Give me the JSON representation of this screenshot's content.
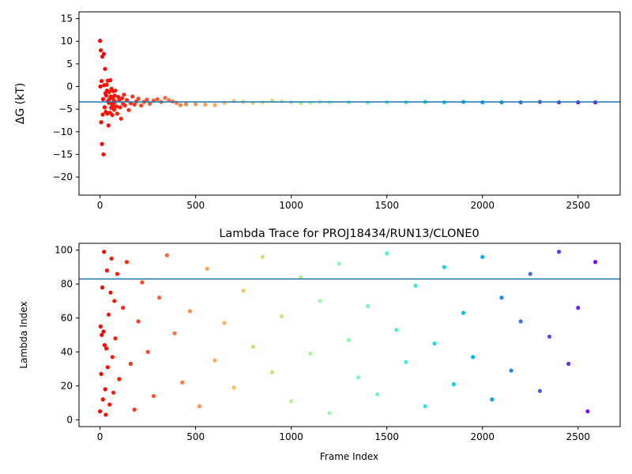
{
  "chart_data": [
    {
      "type": "scatter",
      "title": "",
      "xlabel": "",
      "ylabel": "ΔG (kT)",
      "xlim": [
        -110,
        2720
      ],
      "ylim": [
        -24,
        16.5
      ],
      "x_ticks": [
        0,
        500,
        1000,
        1500,
        2000,
        2500
      ],
      "y_ticks": [
        15,
        10,
        5,
        0,
        -5,
        -10,
        -15,
        -20
      ],
      "colormap": "rainbow (red → violet along frame index)",
      "reference_line": {
        "y": -3.4,
        "color": "#1f77b4"
      },
      "series": [
        {
          "description": "running ΔG estimate per frame",
          "points": [
            [
              0,
              10.1
            ],
            [
              2,
              0.0
            ],
            [
              4,
              8.0
            ],
            [
              6,
              -7.9
            ],
            [
              8,
              1.2
            ],
            [
              10,
              -12.7
            ],
            [
              12,
              6.6
            ],
            [
              14,
              -6.2
            ],
            [
              16,
              -2.8
            ],
            [
              18,
              -15.0
            ],
            [
              20,
              7.2
            ],
            [
              22,
              0.3
            ],
            [
              24,
              -4.6
            ],
            [
              26,
              3.9
            ],
            [
              28,
              -1.5
            ],
            [
              30,
              -5.6
            ],
            [
              32,
              -2.0
            ],
            [
              34,
              0.4
            ],
            [
              36,
              -0.9
            ],
            [
              38,
              -6.0
            ],
            [
              40,
              1.3
            ],
            [
              42,
              -3.2
            ],
            [
              44,
              -8.6
            ],
            [
              46,
              -3.6
            ],
            [
              48,
              -1.2
            ],
            [
              50,
              -2.7
            ],
            [
              52,
              -5.8
            ],
            [
              54,
              1.4
            ],
            [
              56,
              -2.2
            ],
            [
              58,
              -4.7
            ],
            [
              60,
              -0.5
            ],
            [
              62,
              -3.9
            ],
            [
              64,
              -6.3
            ],
            [
              66,
              -2.4
            ],
            [
              68,
              -1.0
            ],
            [
              70,
              -4.2
            ],
            [
              72,
              -3.1
            ],
            [
              74,
              -5.1
            ],
            [
              76,
              -2.0
            ],
            [
              78,
              -3.4
            ],
            [
              80,
              -0.9
            ],
            [
              85,
              -4.4
            ],
            [
              90,
              -6.0
            ],
            [
              95,
              -2.3
            ],
            [
              100,
              -3.0
            ],
            [
              105,
              -4.6
            ],
            [
              110,
              -7.1
            ],
            [
              115,
              -2.6
            ],
            [
              120,
              -3.8
            ],
            [
              125,
              -1.8
            ],
            [
              130,
              -4.2
            ],
            [
              140,
              -3.0
            ],
            [
              150,
              -5.2
            ],
            [
              160,
              -3.7
            ],
            [
              170,
              -2.2
            ],
            [
              180,
              -4.0
            ],
            [
              190,
              -3.3
            ],
            [
              200,
              -2.7
            ],
            [
              215,
              -4.2
            ],
            [
              230,
              -3.4
            ],
            [
              245,
              -2.9
            ],
            [
              260,
              -3.8
            ],
            [
              280,
              -3.1
            ],
            [
              300,
              -2.8
            ],
            [
              320,
              -3.4
            ],
            [
              340,
              -2.5
            ],
            [
              360,
              -3.0
            ],
            [
              380,
              -3.3
            ],
            [
              400,
              -3.6
            ],
            [
              420,
              -4.1
            ],
            [
              450,
              -3.9
            ],
            [
              500,
              -3.9
            ],
            [
              550,
              -4.0
            ],
            [
              600,
              -4.1
            ],
            [
              650,
              -3.6
            ],
            [
              700,
              -3.2
            ],
            [
              750,
              -3.4
            ],
            [
              800,
              -3.6
            ],
            [
              850,
              -3.5
            ],
            [
              900,
              -3.1
            ],
            [
              950,
              -3.3
            ],
            [
              1000,
              -3.5
            ],
            [
              1050,
              -3.7
            ],
            [
              1100,
              -3.6
            ],
            [
              1150,
              -3.4
            ],
            [
              1200,
              -3.5
            ],
            [
              1300,
              -3.5
            ],
            [
              1400,
              -3.6
            ],
            [
              1500,
              -3.5
            ],
            [
              1600,
              -3.5
            ],
            [
              1700,
              -3.4
            ],
            [
              1800,
              -3.5
            ],
            [
              1900,
              -3.4
            ],
            [
              2000,
              -3.5
            ],
            [
              2100,
              -3.5
            ],
            [
              2200,
              -3.5
            ],
            [
              2300,
              -3.4
            ],
            [
              2400,
              -3.5
            ],
            [
              2500,
              -3.5
            ],
            [
              2590,
              -3.5
            ]
          ]
        }
      ]
    },
    {
      "type": "scatter",
      "title": "Lambda Trace for PROJ18434/RUN13/CLONE0",
      "xlabel": "Frame Index",
      "ylabel": "Lambda Index",
      "xlim": [
        -110,
        2720
      ],
      "ylim": [
        -4,
        104
      ],
      "x_ticks": [
        0,
        500,
        1000,
        1500,
        2000,
        2500
      ],
      "y_ticks": [
        0,
        20,
        40,
        60,
        80,
        100
      ],
      "colormap": "rainbow (red → violet along frame index)",
      "reference_line": {
        "y": 83,
        "color": "#1f77b4"
      },
      "series": [
        {
          "description": "lambda window index visited at each frame",
          "points": [
            [
              0,
              5
            ],
            [
              3,
              55
            ],
            [
              6,
              27
            ],
            [
              9,
              50
            ],
            [
              12,
              78
            ],
            [
              15,
              12
            ],
            [
              18,
              52
            ],
            [
              21,
              99
            ],
            [
              24,
              44
            ],
            [
              27,
              18
            ],
            [
              30,
              3
            ],
            [
              33,
              42
            ],
            [
              36,
              88
            ],
            [
              40,
              31
            ],
            [
              45,
              62
            ],
            [
              50,
              9
            ],
            [
              55,
              75
            ],
            [
              60,
              95
            ],
            [
              65,
              37
            ],
            [
              70,
              16
            ],
            [
              75,
              70
            ],
            [
              80,
              48
            ],
            [
              90,
              86
            ],
            [
              100,
              24
            ],
            [
              120,
              66
            ],
            [
              140,
              93
            ],
            [
              160,
              33
            ],
            [
              180,
              6
            ],
            [
              200,
              58
            ],
            [
              220,
              81
            ],
            [
              250,
              40
            ],
            [
              280,
              14
            ],
            [
              310,
              72
            ],
            [
              350,
              97
            ],
            [
              390,
              51
            ],
            [
              430,
              22
            ],
            [
              470,
              64
            ],
            [
              520,
              8
            ],
            [
              560,
              89
            ],
            [
              600,
              35
            ],
            [
              650,
              57
            ],
            [
              700,
              19
            ],
            [
              750,
              76
            ],
            [
              800,
              43
            ],
            [
              850,
              96
            ],
            [
              900,
              28
            ],
            [
              950,
              61
            ],
            [
              1000,
              11
            ],
            [
              1050,
              84
            ],
            [
              1100,
              39
            ],
            [
              1150,
              70
            ],
            [
              1200,
              4
            ],
            [
              1250,
              92
            ],
            [
              1300,
              47
            ],
            [
              1350,
              25
            ],
            [
              1400,
              67
            ],
            [
              1450,
              15
            ],
            [
              1500,
              98
            ],
            [
              1550,
              53
            ],
            [
              1600,
              34
            ],
            [
              1650,
              79
            ],
            [
              1700,
              8
            ],
            [
              1750,
              45
            ],
            [
              1800,
              90
            ],
            [
              1850,
              21
            ],
            [
              1900,
              63
            ],
            [
              1950,
              37
            ],
            [
              2000,
              96
            ],
            [
              2050,
              12
            ],
            [
              2100,
              72
            ],
            [
              2150,
              29
            ],
            [
              2200,
              58
            ],
            [
              2250,
              86
            ],
            [
              2300,
              17
            ],
            [
              2350,
              49
            ],
            [
              2400,
              99
            ],
            [
              2450,
              33
            ],
            [
              2500,
              66
            ],
            [
              2550,
              5
            ],
            [
              2590,
              93
            ]
          ]
        }
      ]
    }
  ]
}
